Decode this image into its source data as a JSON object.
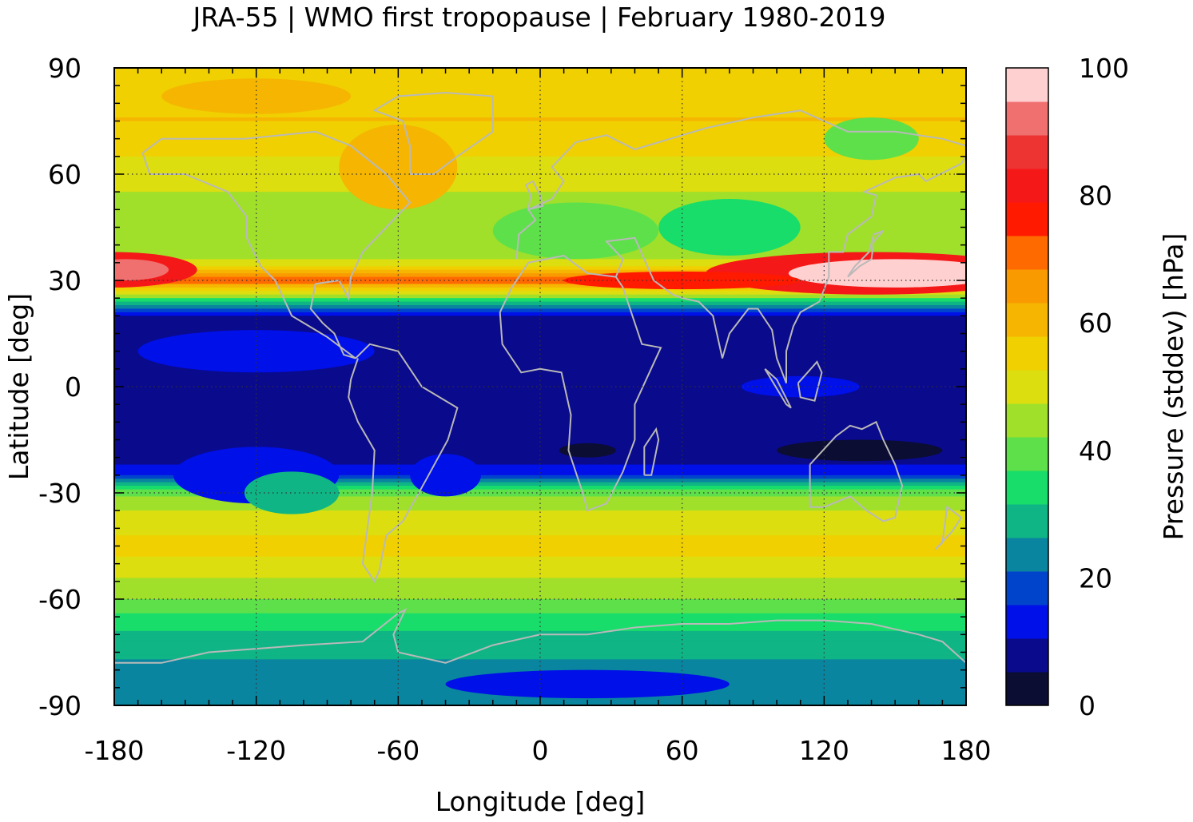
{
  "title": "JRA-55 | WMO first tropopause | February 1980-2019",
  "chart_data": {
    "type": "heatmap",
    "title": "JRA-55 | WMO first tropopause | February 1980-2019",
    "xlabel": "Longitude [deg]",
    "ylabel": "Latitude [deg]",
    "colorbar_label": "Pressure (stddev) [hPa]",
    "xlim": [
      -180,
      180
    ],
    "ylim": [
      -90,
      90
    ],
    "x_ticks": [
      "-180",
      "-120",
      "-60",
      "0",
      "60",
      "120",
      "180"
    ],
    "y_ticks": [
      "90",
      "60",
      "30",
      "0",
      "-30",
      "-60",
      "-90"
    ],
    "colorbar_ticks": [
      "100",
      "80",
      "60",
      "40",
      "20",
      "0"
    ],
    "colorbar_range": [
      0,
      100
    ],
    "grid": true,
    "coastlines": true,
    "colormap": [
      "#0b0d33",
      "#0a0a8c",
      "#0010e8",
      "#0044cc",
      "#0a85a0",
      "#0fb585",
      "#18dd6a",
      "#5ee04a",
      "#a0e02a",
      "#ddde10",
      "#f0d000",
      "#f5b500",
      "#f89a00",
      "#ff6a00",
      "#ff1a00",
      "#f51818",
      "#ee3333",
      "#f07070",
      "#ffd0d0"
    ],
    "zonal_profile": {
      "lat": [
        90,
        75,
        60,
        45,
        35,
        30,
        25,
        20,
        10,
        0,
        -10,
        -20,
        -25,
        -30,
        -35,
        -45,
        -60,
        -70,
        -80,
        -90
      ],
      "stddev_hPa": [
        55,
        58,
        50,
        42,
        48,
        72,
        40,
        8,
        6,
        6,
        6,
        8,
        14,
        40,
        48,
        55,
        42,
        30,
        25,
        22
      ]
    }
  }
}
